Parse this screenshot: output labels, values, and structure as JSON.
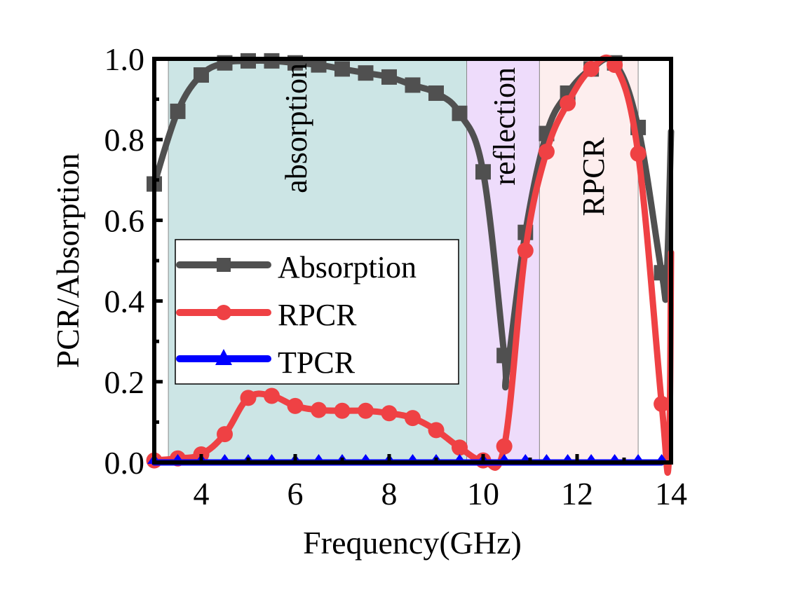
{
  "chart_data": {
    "type": "line",
    "title": "",
    "xlabel": "Frequency(GHz)",
    "ylabel": "PCR/Absorption",
    "xlim": [
      3,
      14
    ],
    "ylim": [
      0,
      1.0
    ],
    "x_ticks": [
      4,
      6,
      8,
      10,
      12,
      14
    ],
    "x_tick_labels": [
      "4",
      "6",
      "8",
      "10",
      "12",
      "14"
    ],
    "y_ticks": [
      0,
      0.2,
      0.4,
      0.6,
      0.8,
      1.0
    ],
    "y_tick_labels": [
      "0.0",
      "0.2",
      "0.4",
      "0.6",
      "0.8",
      "1.0"
    ],
    "grid": false,
    "legend_position": "center-left",
    "regions": [
      {
        "label": "absorption",
        "x_start": 3.3,
        "x_end": 9.65,
        "color": "#cce5e5"
      },
      {
        "label": "reflection",
        "x_start": 9.65,
        "x_end": 11.2,
        "color": "#eedcfb"
      },
      {
        "label": "RPCR",
        "x_start": 11.2,
        "x_end": 13.3,
        "color": "#fdeeee"
      }
    ],
    "series": [
      {
        "name": "Absorption",
        "color": "#505050",
        "marker": "square",
        "x": [
          3.0,
          3.5,
          4.0,
          4.5,
          5.0,
          5.5,
          6.0,
          6.5,
          7.0,
          7.5,
          8.0,
          8.5,
          9.0,
          9.5,
          10.0,
          10.45,
          10.9,
          11.35,
          11.8,
          12.3,
          12.8,
          13.3,
          13.8
        ],
        "values": [
          0.69,
          0.87,
          0.96,
          0.99,
          0.995,
          0.995,
          0.99,
          0.985,
          0.975,
          0.965,
          0.955,
          0.935,
          0.915,
          0.865,
          0.72,
          0.265,
          0.57,
          0.815,
          0.915,
          0.975,
          0.99,
          0.83,
          0.47
        ],
        "curve_extra": [
          [
            10.5,
            0.22
          ],
          [
            13.9,
            0.44
          ],
          [
            14.0,
            0.82
          ]
        ]
      },
      {
        "name": "RPCR",
        "color": "#ef4144",
        "marker": "circle",
        "x": [
          3.0,
          3.5,
          4.0,
          4.5,
          5.0,
          5.5,
          6.0,
          6.5,
          7.0,
          7.5,
          8.0,
          8.5,
          9.0,
          9.5,
          10.0,
          10.45,
          10.9,
          11.35,
          11.8,
          12.3,
          12.8,
          13.3,
          13.8
        ],
        "values": [
          0.005,
          0.01,
          0.02,
          0.07,
          0.16,
          0.165,
          0.14,
          0.13,
          0.128,
          0.128,
          0.122,
          0.11,
          0.08,
          0.037,
          0.005,
          0.04,
          0.525,
          0.77,
          0.89,
          0.975,
          0.985,
          0.765,
          0.145
        ],
        "curve_extra": [
          [
            13.95,
            0.0
          ],
          [
            14.0,
            0.52
          ]
        ]
      },
      {
        "name": "TPCR",
        "color": "#0000ff",
        "marker": "triangle",
        "x": [
          3.0,
          3.5,
          4.0,
          4.5,
          5.0,
          5.5,
          6.0,
          6.5,
          7.0,
          7.5,
          8.0,
          8.5,
          9.0,
          9.5,
          10.0,
          10.45,
          10.9,
          11.35,
          11.8,
          12.3,
          12.8,
          13.3,
          13.8
        ],
        "values": [
          0,
          0,
          0,
          0,
          0,
          0,
          0,
          0,
          0,
          0,
          0,
          0,
          0,
          0,
          0,
          0,
          0,
          0,
          0,
          0,
          0,
          0,
          0
        ]
      }
    ]
  }
}
